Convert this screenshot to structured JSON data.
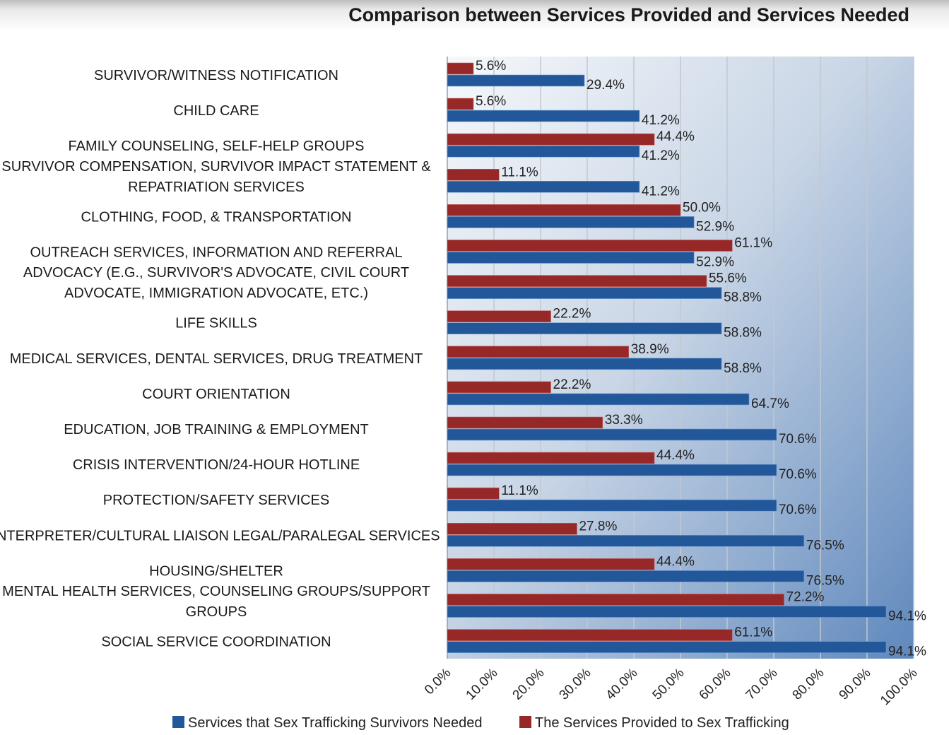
{
  "chart_data": {
    "type": "bar",
    "orientation": "horizontal",
    "title": "Comparison between Services Provided and Services Needed",
    "categories": [
      "SURVIVOR/WITNESS NOTIFICATION",
      "CHILD CARE",
      "FAMILY COUNSELING, SELF-HELP GROUPS",
      "SURVIVOR COMPENSATION, SURVIVOR IMPACT STATEMENT & REPATRIATION SERVICES",
      "CLOTHING, FOOD, & TRANSPORTATION",
      "OUTREACH SERVICES, INFORMATION AND REFERRAL",
      "ADVOCACY (E.G., SURVIVOR'S ADVOCATE, CIVIL COURT ADVOCATE, IMMIGRATION ADVOCATE, ETC.)",
      "LIFE SKILLS",
      "MEDICAL SERVICES, DENTAL SERVICES, DRUG TREATMENT",
      "COURT ORIENTATION",
      "EDUCATION, JOB TRAINING & EMPLOYMENT",
      "CRISIS INTERVENTION/24-HOUR HOTLINE",
      "PROTECTION/SAFETY SERVICES",
      "INTERPRETER/CULTURAL LIAISON LEGAL/PARALEGAL SERVICES",
      "HOUSING/SHELTER",
      "MENTAL HEALTH SERVICES, COUNSELING GROUPS/SUPPORT GROUPS",
      "SOCIAL SERVICE COORDINATION"
    ],
    "category_lines": [
      [
        "SURVIVOR/WITNESS NOTIFICATION"
      ],
      [
        "CHILD CARE"
      ],
      [
        "FAMILY COUNSELING, SELF-HELP GROUPS"
      ],
      [
        "SURVIVOR COMPENSATION, SURVIVOR IMPACT STATEMENT &",
        "REPATRIATION SERVICES"
      ],
      [
        "CLOTHING, FOOD, & TRANSPORTATION"
      ],
      [
        "OUTREACH SERVICES, INFORMATION AND REFERRAL"
      ],
      [
        "ADVOCACY (E.G., SURVIVOR'S ADVOCATE, CIVIL COURT",
        "ADVOCATE, IMMIGRATION ADVOCATE, ETC.)"
      ],
      [
        "LIFE SKILLS"
      ],
      [
        "MEDICAL SERVICES, DENTAL SERVICES, DRUG TREATMENT"
      ],
      [
        "COURT ORIENTATION"
      ],
      [
        "EDUCATION, JOB TRAINING & EMPLOYMENT"
      ],
      [
        "CRISIS INTERVENTION/24-HOUR HOTLINE"
      ],
      [
        "PROTECTION/SAFETY SERVICES"
      ],
      [
        "INTERPRETER/CULTURAL LIAISON LEGAL/PARALEGAL SERVICES"
      ],
      [
        "HOUSING/SHELTER"
      ],
      [
        "MENTAL HEALTH SERVICES, COUNSELING GROUPS/SUPPORT",
        "GROUPS"
      ],
      [
        "SOCIAL SERVICE COORDINATION"
      ]
    ],
    "series": [
      {
        "name": "Services that Sex Trafficking Survivors Needed",
        "color": "#22589a",
        "values": [
          29.4,
          41.2,
          41.2,
          41.2,
          52.9,
          52.9,
          58.8,
          58.8,
          58.8,
          64.7,
          70.6,
          70.6,
          70.6,
          76.5,
          76.5,
          94.1,
          94.1
        ]
      },
      {
        "name": "The Services Provided to Sex Trafficking",
        "color": "#962828",
        "values": [
          5.6,
          5.6,
          44.4,
          11.1,
          50.0,
          61.1,
          55.6,
          22.2,
          38.9,
          22.2,
          33.3,
          44.4,
          11.1,
          27.8,
          44.4,
          72.2,
          61.1
        ]
      }
    ],
    "xlim": [
      0,
      100
    ],
    "x_ticks": [
      "0.0%",
      "10.0%",
      "20.0%",
      "30.0%",
      "40.0%",
      "50.0%",
      "60.0%",
      "70.0%",
      "80.0%",
      "90.0%",
      "100.0%"
    ],
    "grid": true,
    "legend": "bottom",
    "data_labels": true
  }
}
